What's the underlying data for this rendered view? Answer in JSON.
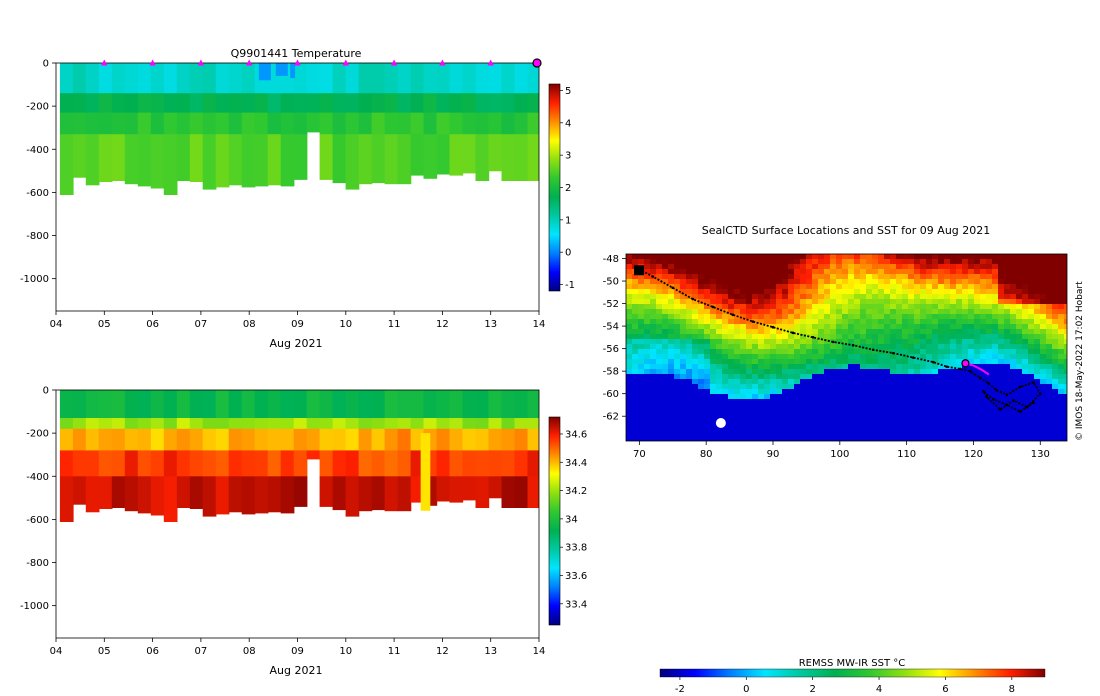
{
  "colors": {
    "jet": [
      "#00007f",
      "#0000ff",
      "#007fff",
      "#00e5ff",
      "#00c8a0",
      "#00b050",
      "#30c830",
      "#90e010",
      "#ffff00",
      "#ff8c00",
      "#ff2000",
      "#800000"
    ],
    "track": "#000000",
    "marker": "#ff00ff",
    "land": "#ffffff"
  },
  "chart_data": [
    {
      "type": "heatmap",
      "id": "temperature",
      "title": "Q9901441  Temperature",
      "xlabel": "Aug 2021",
      "ylabel": "",
      "x_ticks": [
        "04",
        "05",
        "06",
        "07",
        "08",
        "09",
        "10",
        "11",
        "12",
        "13",
        "14"
      ],
      "xlim": [
        4,
        14
      ],
      "y_ticks": [
        "0",
        "-200",
        "-400",
        "-600",
        "-800",
        "-1000"
      ],
      "ylim": [
        -1150,
        0
      ],
      "colorbar_ticks": [
        "5",
        "4",
        "3",
        "2",
        "1",
        "0",
        "-1"
      ],
      "clim": [
        -1.2,
        5.2
      ],
      "surface_markers_day": [
        5,
        6,
        7,
        8,
        9,
        10,
        11,
        12,
        13
      ],
      "current_marker_day": 14,
      "profile_max_depth": [
        -610,
        -530,
        -565,
        -550,
        -545,
        -560,
        -570,
        -580,
        -610,
        -545,
        -550,
        -585,
        -575,
        -565,
        -575,
        -570,
        -565,
        -570,
        -540,
        -320,
        -540,
        -555,
        -585,
        -560,
        -555,
        -560,
        -560,
        -520,
        -535,
        -515,
        -520,
        -510,
        -545,
        -500,
        -545,
        -545,
        -545
      ],
      "layers": [
        {
          "top": 0,
          "bottom": -140,
          "value": 0.9
        },
        {
          "top": -140,
          "bottom": -230,
          "value": 1.7
        },
        {
          "top": -230,
          "bottom": -330,
          "value": 2.2
        },
        {
          "top": -330,
          "bottom": -620,
          "value": 2.5
        }
      ],
      "gaps_depth": [
        -400,
        -400,
        -400,
        -400,
        -400,
        -400,
        -400,
        -400,
        -400,
        -400,
        -400,
        -400,
        -400,
        -400,
        -400,
        -400,
        -400,
        -400,
        -400,
        -400,
        -400,
        -400,
        -400,
        -400,
        -400,
        -400
      ]
    },
    {
      "type": "heatmap",
      "id": "salinity",
      "title": "",
      "xlabel": "Aug 2021",
      "ylabel": "",
      "x_ticks": [
        "04",
        "05",
        "06",
        "07",
        "08",
        "09",
        "10",
        "11",
        "12",
        "13",
        "14"
      ],
      "xlim": [
        4,
        14
      ],
      "y_ticks": [
        "0",
        "-200",
        "-400",
        "-600",
        "-800",
        "-1000"
      ],
      "ylim": [
        -1150,
        0
      ],
      "colorbar_ticks": [
        "34.6",
        "34.4",
        "34.2",
        "34",
        "33.8",
        "33.6",
        "33.4"
      ],
      "clim": [
        33.25,
        34.72
      ],
      "profile_max_depth": [
        -610,
        -530,
        -565,
        -550,
        -545,
        -560,
        -570,
        -580,
        -610,
        -545,
        -550,
        -585,
        -575,
        -565,
        -575,
        -570,
        -565,
        -570,
        -540,
        -320,
        -540,
        -555,
        -585,
        -560,
        -555,
        -560,
        -560,
        -520,
        -535,
        -515,
        -520,
        -510,
        -545,
        -500,
        -545,
        -545,
        -545
      ],
      "layers": [
        {
          "top": 0,
          "bottom": -130,
          "value": 33.95
        },
        {
          "top": -130,
          "bottom": -180,
          "value": 34.2
        },
        {
          "top": -180,
          "bottom": -280,
          "value": 34.42
        },
        {
          "top": -280,
          "bottom": -400,
          "value": 34.55
        },
        {
          "top": -400,
          "bottom": -620,
          "value": 34.65
        }
      ]
    },
    {
      "type": "heatmap",
      "id": "sst_map",
      "title": "SealCTD Surface Locations and SST for 09 Aug 2021",
      "xlabel": "",
      "ylabel": "",
      "x_ticks": [
        "70",
        "80",
        "90",
        "100",
        "110",
        "120",
        "130"
      ],
      "xlim": [
        68,
        134
      ],
      "y_ticks": [
        "-48",
        "-50",
        "-52",
        "-54",
        "-56",
        "-58",
        "-60",
        "-62"
      ],
      "ylim": [
        -64.2,
        -47.6
      ],
      "colorbar_label": "REMSS MW-IR SST °C",
      "colorbar_ticks": [
        "-2",
        "0",
        "2",
        "4",
        "6",
        "8"
      ],
      "clim": [
        -2.6,
        9.0
      ],
      "credit": "© IMOS 18-May-2022 17:02 Hobart",
      "track_lon": [
        69.5,
        72,
        75,
        78,
        81,
        84,
        87,
        90,
        93,
        96,
        99,
        102,
        105,
        108,
        111,
        114,
        116,
        118,
        119.5,
        121,
        122.3,
        123.5,
        125,
        127,
        129,
        130,
        128,
        126,
        124,
        122,
        121.5,
        123,
        125,
        127,
        129
      ],
      "track_lat": [
        -48.8,
        -49.6,
        -50.6,
        -51.6,
        -52.3,
        -53.0,
        -53.6,
        -54.1,
        -54.6,
        -55.0,
        -55.4,
        -55.7,
        -56.1,
        -56.4,
        -56.8,
        -57.2,
        -57.6,
        -57.8,
        -58.0,
        -58.6,
        -59.1,
        -59.7,
        -60.1,
        -59.4,
        -59.0,
        -60.0,
        -61.2,
        -60.6,
        -61.4,
        -60.3,
        -59.8,
        -60.5,
        -61.0,
        -61.6,
        -60.8
      ],
      "seal_last_lon": 118.8,
      "seal_last_lat": -57.3,
      "magenta_lon": [
        118.8,
        120.0,
        121.3,
        122.3
      ],
      "magenta_lat": [
        -57.3,
        -57.5,
        -57.9,
        -58.3
      ]
    }
  ]
}
